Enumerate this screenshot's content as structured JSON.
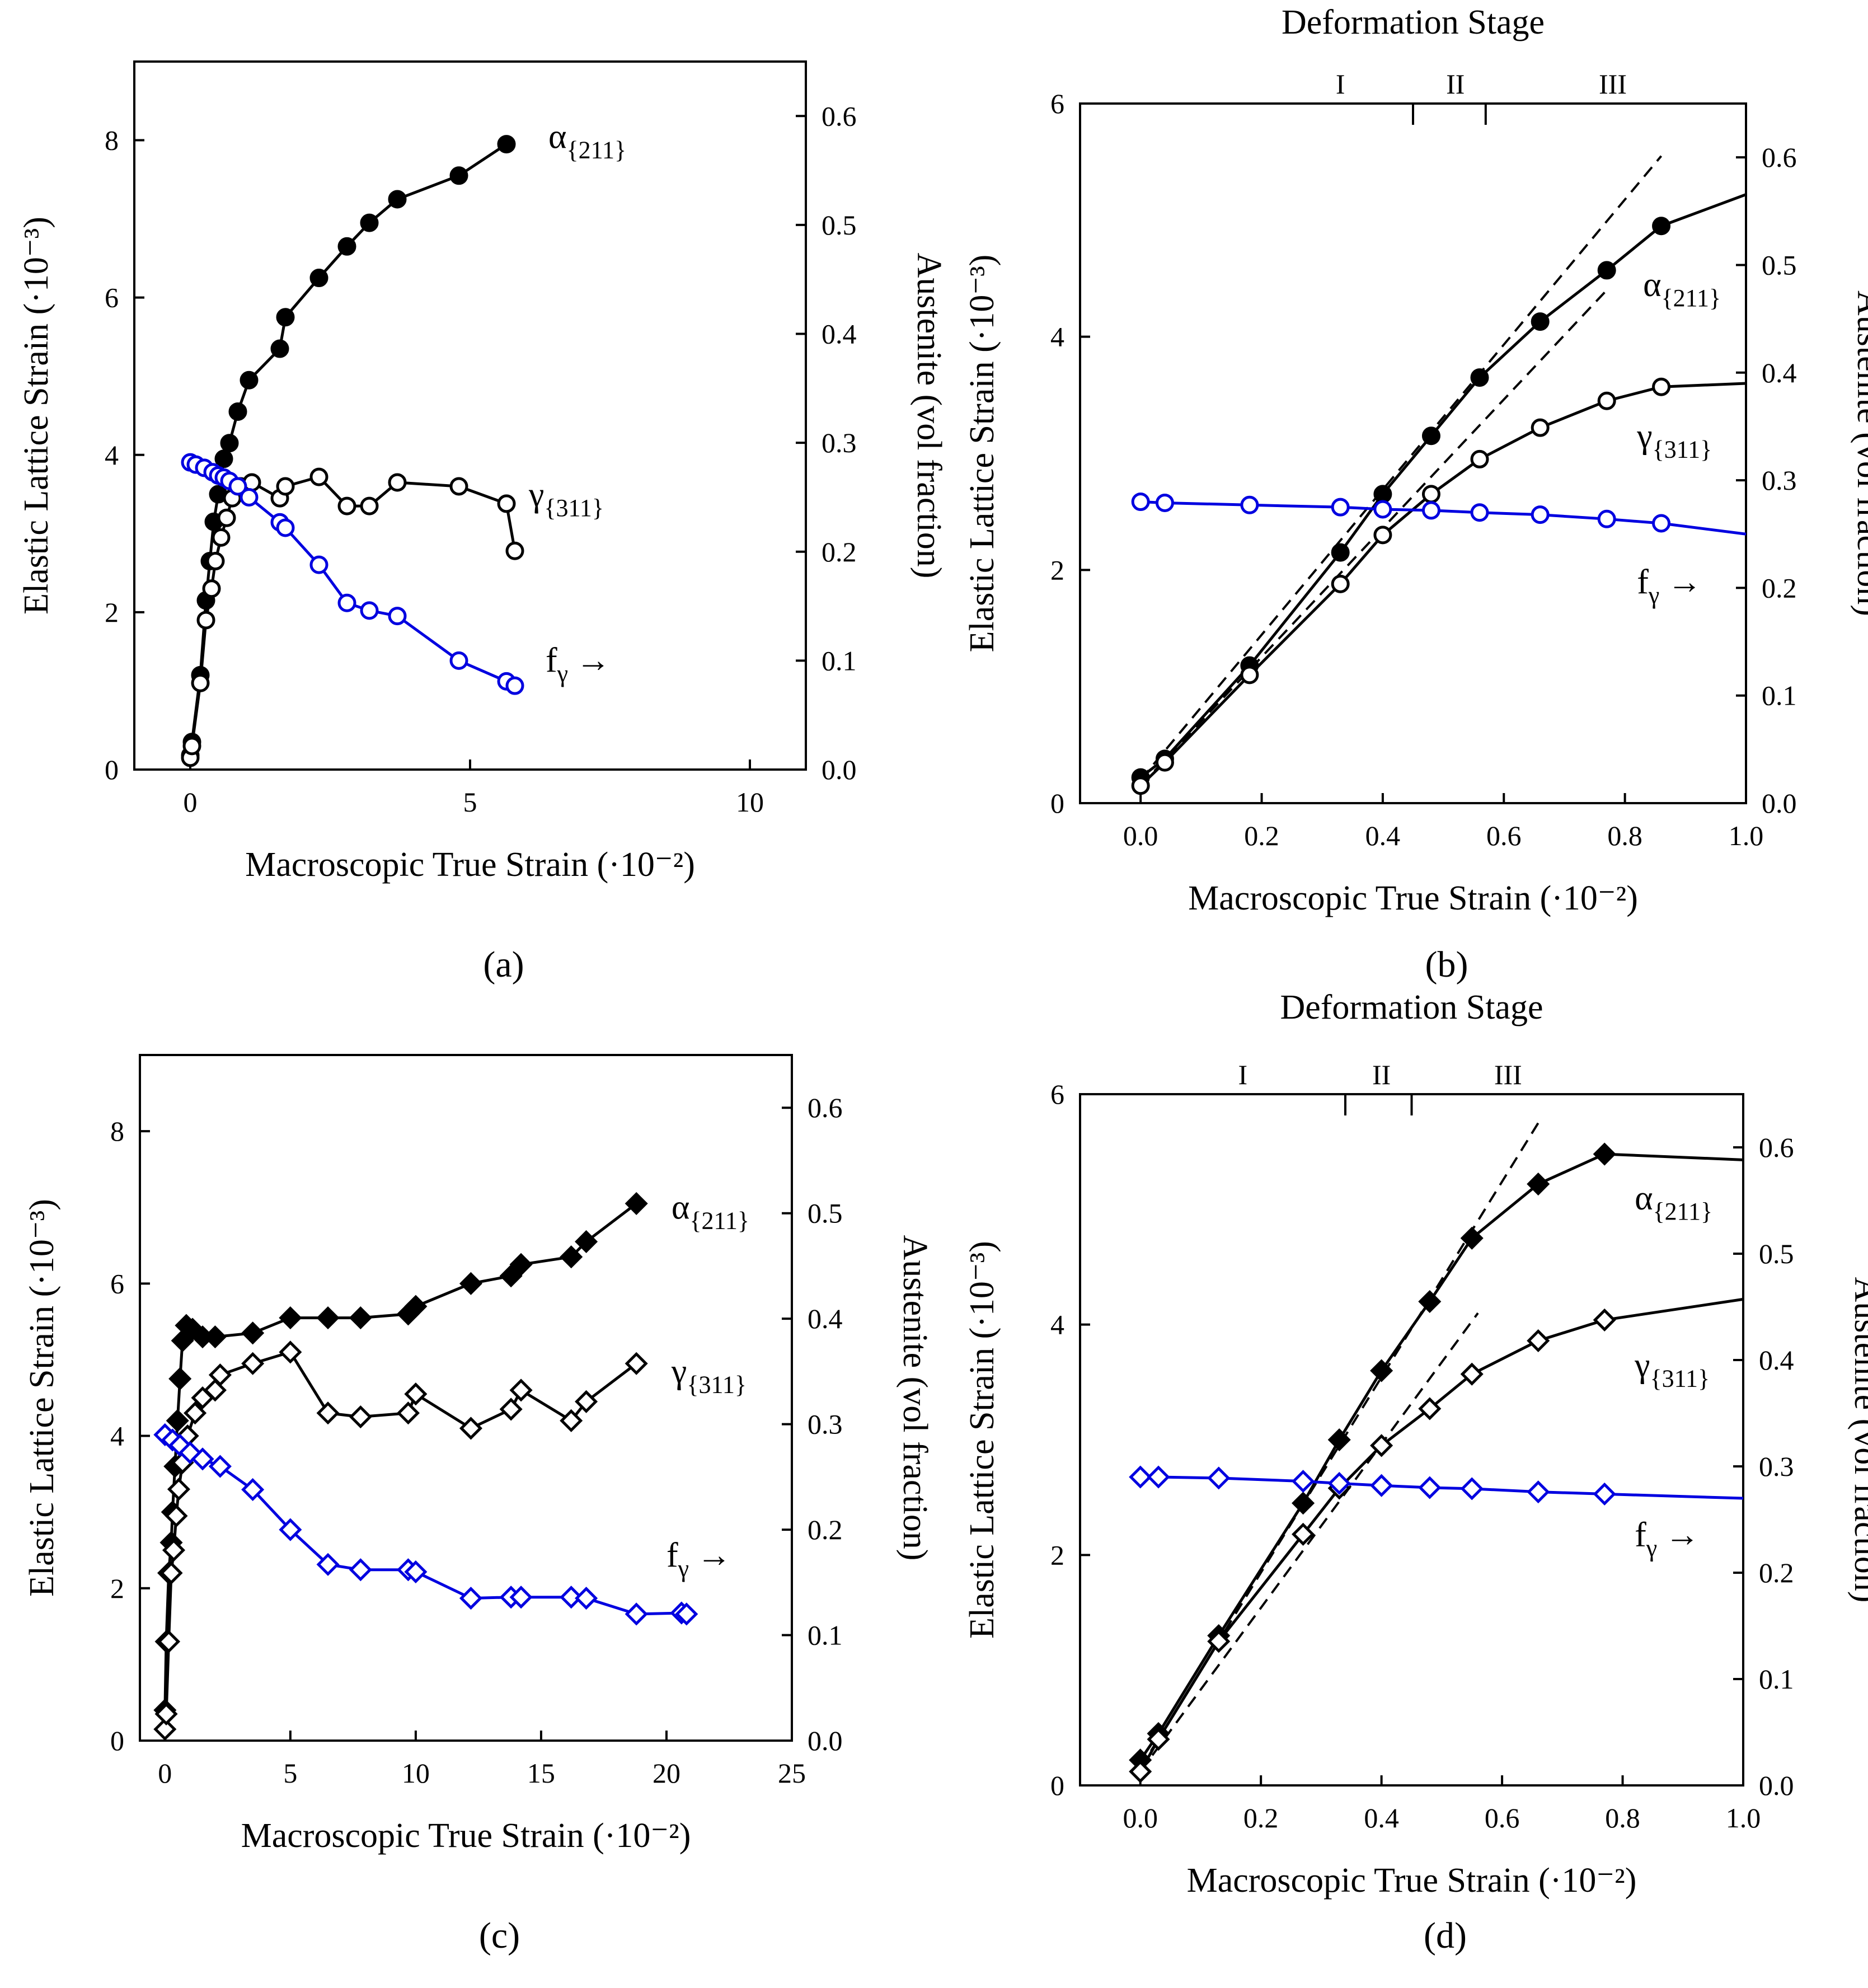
{
  "figure": {
    "colors": {
      "alpha": "#000000",
      "gamma": "#000000",
      "f_gamma": "#0000e0",
      "axis": "#000000",
      "dashed": "#000000"
    },
    "stage_title": "Deformation Stage",
    "stage_labels": [
      "I",
      "II",
      "III"
    ]
  },
  "chart_data": [
    {
      "panel": "(a)",
      "type": "line",
      "marker": "circle",
      "xlabel": "Macroscopic True Strain (·10⁻²)",
      "ylabel": "Elastic Lattice Strain (·10⁻³)",
      "y2label": "Austenite (vol fraction)",
      "xlim": [
        -1,
        11
      ],
      "ylim": [
        0,
        9
      ],
      "y2lim": [
        0,
        0.65
      ],
      "xticks": [
        0,
        5,
        10
      ],
      "yticks": [
        0,
        2,
        4,
        6,
        8
      ],
      "y2ticks": [
        0.0,
        0.1,
        0.2,
        0.3,
        0.4,
        0.5,
        0.6
      ],
      "xtick_labels": [
        "0",
        "5",
        "10"
      ],
      "ytick_labels": [
        "0",
        "2",
        "4",
        "6",
        "8"
      ],
      "y2tick_labels": [
        "0.0",
        "0.1",
        "0.2",
        "0.3",
        "0.4",
        "0.5",
        "0.6"
      ],
      "stage_axis": false,
      "series": [
        {
          "name": "α{211}",
          "label_main": "α",
          "label_sub": "{211}",
          "axis": "left",
          "filled": true,
          "color_key": "alpha",
          "label_pos": [
            6.4,
            7.9
          ],
          "x": [
            0,
            0.03,
            0.18,
            0.28,
            0.35,
            0.42,
            0.5,
            0.6,
            0.7,
            0.85,
            1.05,
            1.6,
            1.7,
            2.3,
            2.8,
            3.2,
            3.7,
            4.8,
            5.65
          ],
          "y": [
            0.18,
            0.35,
            1.2,
            2.15,
            2.65,
            3.15,
            3.5,
            3.95,
            4.15,
            4.55,
            4.95,
            5.35,
            5.75,
            6.25,
            6.65,
            6.95,
            7.25,
            7.55,
            7.95
          ]
        },
        {
          "name": "γ{311}",
          "label_main": "γ",
          "label_sub": "{311}",
          "axis": "left",
          "filled": false,
          "color_key": "gamma",
          "label_pos": [
            6.05,
            3.35
          ],
          "x": [
            0,
            0.03,
            0.18,
            0.28,
            0.38,
            0.45,
            0.55,
            0.65,
            0.75,
            0.9,
            1.1,
            1.6,
            1.7,
            2.3,
            2.8,
            3.2,
            3.7,
            4.8,
            5.65,
            5.8
          ],
          "y": [
            0.15,
            0.3,
            1.1,
            1.9,
            2.3,
            2.65,
            2.95,
            3.2,
            3.45,
            3.6,
            3.65,
            3.45,
            3.6,
            3.72,
            3.35,
            3.35,
            3.65,
            3.6,
            3.38,
            2.78
          ]
        },
        {
          "name": "fγ",
          "label_main": "f",
          "label_sub": "γ",
          "arrow": "→",
          "axis": "right",
          "filled": false,
          "color_key": "f_gamma",
          "label_pos": [
            6.35,
            0.09
          ],
          "x": [
            0,
            0.1,
            0.25,
            0.4,
            0.5,
            0.6,
            0.7,
            0.85,
            1.05,
            1.6,
            1.7,
            2.3,
            2.8,
            3.2,
            3.7,
            4.8,
            5.65,
            5.8
          ],
          "y": [
            0.282,
            0.28,
            0.277,
            0.273,
            0.27,
            0.268,
            0.265,
            0.26,
            0.25,
            0.227,
            0.222,
            0.188,
            0.153,
            0.146,
            0.141,
            0.1,
            0.081,
            0.077
          ]
        }
      ]
    },
    {
      "panel": "(b)",
      "type": "line",
      "marker": "circle",
      "xlabel": "Macroscopic True Strain (·10⁻²)",
      "ylabel": "Elastic Lattice Strain (·10⁻³)",
      "y2label": "Austenite (vol fraction)",
      "xlim": [
        -0.1,
        1.0
      ],
      "ylim": [
        0,
        6
      ],
      "y2lim": [
        0,
        0.65
      ],
      "xticks": [
        0,
        0.2,
        0.4,
        0.6,
        0.8,
        1.0
      ],
      "yticks": [
        0,
        2,
        4,
        6
      ],
      "y2ticks": [
        0.0,
        0.1,
        0.2,
        0.3,
        0.4,
        0.5,
        0.6
      ],
      "xtick_labels": [
        "0.0",
        "0.2",
        "0.4",
        "0.6",
        "0.8",
        "1.0"
      ],
      "ytick_labels": [
        "0",
        "2",
        "4",
        "6"
      ],
      "y2tick_labels": [
        "0.0",
        "0.1",
        "0.2",
        "0.3",
        "0.4",
        "0.5",
        "0.6"
      ],
      "stage_axis": true,
      "stage_boundaries": [
        0.45,
        0.57
      ],
      "stage_label_x": [
        0.33,
        0.52,
        0.78
      ],
      "dashed_lines": [
        {
          "x": [
            0,
            0.86
          ],
          "y": [
            0.2,
            5.55
          ]
        },
        {
          "x": [
            0,
            0.77
          ],
          "y": [
            0.15,
            4.4
          ]
        }
      ],
      "series": [
        {
          "name": "α{211}",
          "label_main": "α",
          "label_sub": "{211}",
          "axis": "left",
          "filled": true,
          "color_key": "alpha",
          "label_pos": [
            0.83,
            4.35
          ],
          "continue_to": [
            1.0,
            5.22
          ],
          "x": [
            0.0,
            0.04,
            0.18,
            0.33,
            0.4,
            0.48,
            0.56,
            0.66,
            0.77,
            0.86
          ],
          "y": [
            0.22,
            0.38,
            1.18,
            2.15,
            2.65,
            3.15,
            3.65,
            4.13,
            4.57,
            4.95
          ]
        },
        {
          "name": "γ{311}",
          "label_main": "γ",
          "label_sub": "{311}",
          "axis": "left",
          "filled": false,
          "color_key": "gamma",
          "label_pos": [
            0.82,
            3.05
          ],
          "continue_to": [
            1.0,
            3.6
          ],
          "x": [
            0.0,
            0.04,
            0.18,
            0.33,
            0.4,
            0.48,
            0.56,
            0.66,
            0.77,
            0.86
          ],
          "y": [
            0.15,
            0.35,
            1.1,
            1.88,
            2.3,
            2.65,
            2.95,
            3.22,
            3.45,
            3.57
          ]
        },
        {
          "name": "fγ",
          "label_main": "f",
          "label_sub": "γ",
          "arrow": "→",
          "axis": "right",
          "filled": false,
          "color_key": "f_gamma",
          "label_pos": [
            0.82,
            0.195
          ],
          "continue_to": [
            1.0,
            0.25
          ],
          "x": [
            0.0,
            0.04,
            0.18,
            0.33,
            0.4,
            0.48,
            0.56,
            0.66,
            0.77,
            0.86
          ],
          "y": [
            0.28,
            0.279,
            0.277,
            0.275,
            0.273,
            0.272,
            0.27,
            0.268,
            0.264,
            0.26
          ]
        }
      ]
    },
    {
      "panel": "(c)",
      "type": "line",
      "marker": "diamond",
      "xlabel": "Macroscopic True Strain (·10⁻²)",
      "ylabel": "Elastic Lattice Strain (·10⁻³)",
      "y2label": "Austenite (vol fraction)",
      "xlim": [
        -1,
        25
      ],
      "ylim": [
        0,
        9
      ],
      "y2lim": [
        0,
        0.65
      ],
      "xticks": [
        0,
        5,
        10,
        15,
        20,
        25
      ],
      "yticks": [
        0,
        2,
        4,
        6,
        8
      ],
      "y2ticks": [
        0.0,
        0.1,
        0.2,
        0.3,
        0.4,
        0.5,
        0.6
      ],
      "xtick_labels": [
        "0",
        "5",
        "10",
        "15",
        "20",
        "25"
      ],
      "ytick_labels": [
        "0",
        "2",
        "4",
        "6",
        "8"
      ],
      "y2tick_labels": [
        "0.0",
        "0.1",
        "0.2",
        "0.3",
        "0.4",
        "0.5",
        "0.6"
      ],
      "stage_axis": false,
      "series": [
        {
          "name": "α{211}",
          "label_main": "α",
          "label_sub": "{211}",
          "axis": "left",
          "filled": true,
          "color_key": "alpha",
          "label_pos": [
            20.2,
            6.85
          ],
          "x": [
            0,
            0.05,
            0.15,
            0.25,
            0.3,
            0.4,
            0.5,
            0.6,
            0.7,
            0.85,
            1.1,
            1.5,
            2,
            3.5,
            5,
            6.5,
            7.8,
            9.7,
            10,
            12.2,
            13.8,
            14.2,
            16.2,
            16.8,
            18.8
          ],
          "y": [
            0.4,
            1.3,
            2.2,
            2.6,
            3.0,
            3.6,
            4.2,
            4.75,
            5.25,
            5.45,
            5.4,
            5.3,
            5.3,
            5.35,
            5.55,
            5.55,
            5.55,
            5.6,
            5.7,
            6.0,
            6.1,
            6.25,
            6.35,
            6.55,
            7.05
          ]
        },
        {
          "name": "γ{311}",
          "label_main": "γ",
          "label_sub": "{311}",
          "axis": "left",
          "filled": false,
          "color_key": "gamma",
          "label_pos": [
            20.2,
            4.7
          ],
          "x": [
            0,
            0.05,
            0.15,
            0.25,
            0.35,
            0.45,
            0.55,
            0.7,
            0.9,
            1.2,
            1.5,
            2,
            2.2,
            3.5,
            5,
            6.5,
            7.8,
            9.7,
            10,
            12.2,
            13.8,
            14.2,
            16.2,
            16.8,
            18.8
          ],
          "y": [
            0.15,
            0.35,
            1.3,
            2.2,
            2.5,
            2.95,
            3.3,
            3.65,
            4.0,
            4.3,
            4.5,
            4.6,
            4.8,
            4.95,
            5.1,
            4.3,
            4.25,
            4.3,
            4.55,
            4.1,
            4.35,
            4.6,
            4.2,
            4.45,
            4.95
          ]
        },
        {
          "name": "fγ",
          "label_main": "f",
          "label_sub": "γ",
          "arrow": "→",
          "axis": "right",
          "filled": false,
          "color_key": "f_gamma",
          "label_pos": [
            20.0,
            0.165
          ],
          "x": [
            0,
            0.3,
            0.6,
            1.0,
            1.5,
            2.2,
            3.5,
            5,
            6.5,
            7.8,
            9.7,
            10,
            12.2,
            13.8,
            14.2,
            16.2,
            16.8,
            18.8,
            20.6,
            20.8
          ],
          "y": [
            0.29,
            0.285,
            0.28,
            0.273,
            0.267,
            0.26,
            0.238,
            0.2,
            0.167,
            0.162,
            0.162,
            0.16,
            0.135,
            0.136,
            0.136,
            0.136,
            0.135,
            0.12,
            0.121,
            0.12
          ]
        }
      ]
    },
    {
      "panel": "(d)",
      "type": "line",
      "marker": "diamond",
      "xlabel": "Macroscopic True Strain (·10⁻²)",
      "ylabel": "Elastic Lattice Strain (·10⁻³)",
      "y2label": "Austenite (vol fraction)",
      "xlim": [
        -0.1,
        1.0
      ],
      "ylim": [
        0,
        6
      ],
      "y2lim": [
        0,
        0.65
      ],
      "xticks": [
        0,
        0.2,
        0.4,
        0.6,
        0.8,
        1.0
      ],
      "yticks": [
        0,
        2,
        4,
        6
      ],
      "y2ticks": [
        0.0,
        0.1,
        0.2,
        0.3,
        0.4,
        0.5,
        0.6
      ],
      "xtick_labels": [
        "0.0",
        "0.2",
        "0.4",
        "0.6",
        "0.8",
        "1.0"
      ],
      "ytick_labels": [
        "0",
        "2",
        "4",
        "6"
      ],
      "y2tick_labels": [
        "0.0",
        "0.1",
        "0.2",
        "0.3",
        "0.4",
        "0.5",
        "0.6"
      ],
      "stage_axis": true,
      "stage_boundaries": [
        0.34,
        0.45
      ],
      "stage_label_x": [
        0.17,
        0.4,
        0.61
      ],
      "dashed_lines": [
        {
          "x": [
            0,
            0.66
          ],
          "y": [
            0.15,
            5.75
          ]
        },
        {
          "x": [
            0,
            0.56
          ],
          "y": [
            0.12,
            4.1
          ]
        }
      ],
      "series": [
        {
          "name": "α{211}",
          "label_main": "α",
          "label_sub": "{211}",
          "axis": "left",
          "filled": true,
          "color_key": "alpha",
          "label_pos": [
            0.82,
            5.0
          ],
          "continue_to": [
            1.0,
            5.43
          ],
          "x": [
            0.0,
            0.03,
            0.13,
            0.27,
            0.33,
            0.4,
            0.48,
            0.55,
            0.66,
            0.77
          ],
          "y": [
            0.22,
            0.45,
            1.3,
            2.45,
            3.0,
            3.6,
            4.2,
            4.75,
            5.22,
            5.48
          ]
        },
        {
          "name": "γ{311}",
          "label_main": "γ",
          "label_sub": "{311}",
          "axis": "left",
          "filled": false,
          "color_key": "gamma",
          "label_pos": [
            0.82,
            3.55
          ],
          "continue_to": [
            1.0,
            4.22
          ],
          "x": [
            0.0,
            0.03,
            0.13,
            0.27,
            0.33,
            0.4,
            0.48,
            0.55,
            0.66,
            0.77
          ],
          "y": [
            0.12,
            0.4,
            1.25,
            2.18,
            2.58,
            2.95,
            3.27,
            3.57,
            3.86,
            4.04
          ]
        },
        {
          "name": "fγ",
          "label_main": "f",
          "label_sub": "γ",
          "arrow": "→",
          "axis": "right",
          "filled": false,
          "color_key": "f_gamma",
          "label_pos": [
            0.82,
            0.225
          ],
          "continue_to": [
            1.0,
            0.27
          ],
          "x": [
            0.0,
            0.03,
            0.13,
            0.27,
            0.33,
            0.4,
            0.48,
            0.55,
            0.66,
            0.77
          ],
          "y": [
            0.29,
            0.29,
            0.289,
            0.286,
            0.284,
            0.282,
            0.28,
            0.279,
            0.276,
            0.274
          ]
        }
      ]
    }
  ]
}
